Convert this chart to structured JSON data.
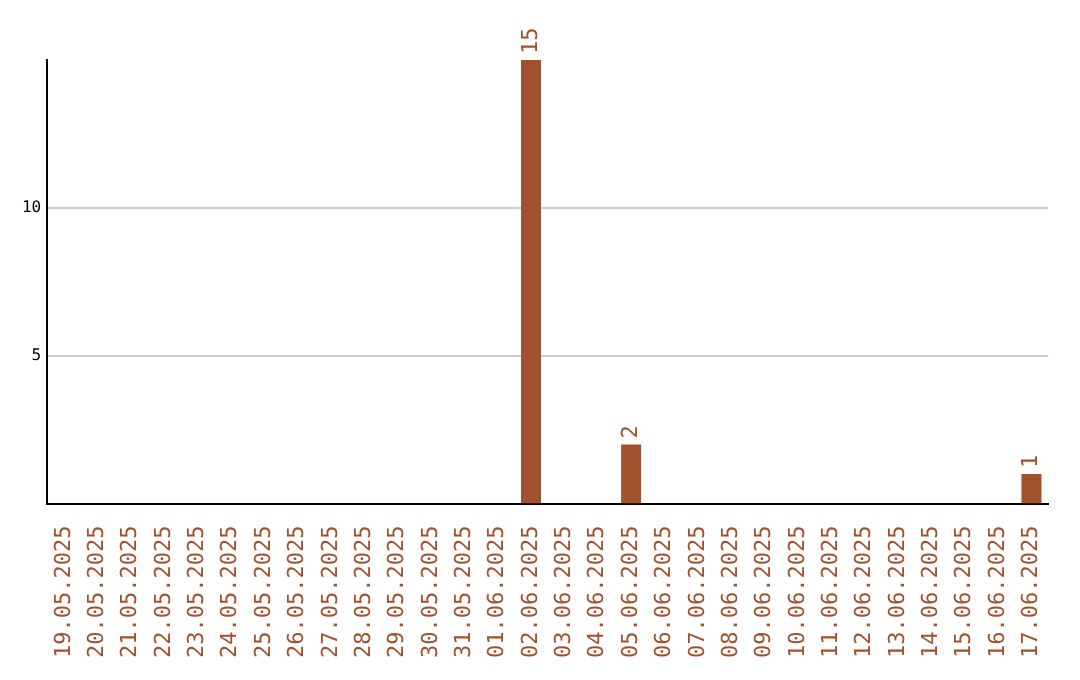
{
  "chart_data": {
    "type": "bar",
    "categories": [
      "19.05.2025",
      "20.05.2025",
      "21.05.2025",
      "22.05.2025",
      "23.05.2025",
      "24.05.2025",
      "25.05.2025",
      "26.05.2025",
      "27.05.2025",
      "28.05.2025",
      "29.05.2025",
      "30.05.2025",
      "31.05.2025",
      "01.06.2025",
      "02.06.2025",
      "03.06.2025",
      "04.06.2025",
      "05.06.2025",
      "06.06.2025",
      "07.06.2025",
      "08.06.2025",
      "09.06.2025",
      "10.06.2025",
      "11.06.2025",
      "12.06.2025",
      "13.06.2025",
      "14.06.2025",
      "15.06.2025",
      "16.06.2025",
      "17.06.2025"
    ],
    "values": [
      0,
      0,
      0,
      0,
      0,
      0,
      0,
      0,
      0,
      0,
      0,
      0,
      0,
      0,
      15,
      0,
      0,
      2,
      0,
      0,
      0,
      0,
      0,
      0,
      0,
      0,
      0,
      0,
      0,
      1
    ],
    "value_labels": [
      null,
      null,
      null,
      null,
      null,
      null,
      null,
      null,
      null,
      null,
      null,
      null,
      null,
      null,
      "15",
      null,
      null,
      "2",
      null,
      null,
      null,
      null,
      null,
      null,
      null,
      null,
      null,
      null,
      null,
      "1"
    ],
    "color": "#a0522d",
    "ylim": [
      0,
      15
    ],
    "yticks": [
      5,
      10
    ],
    "grid": "y"
  }
}
